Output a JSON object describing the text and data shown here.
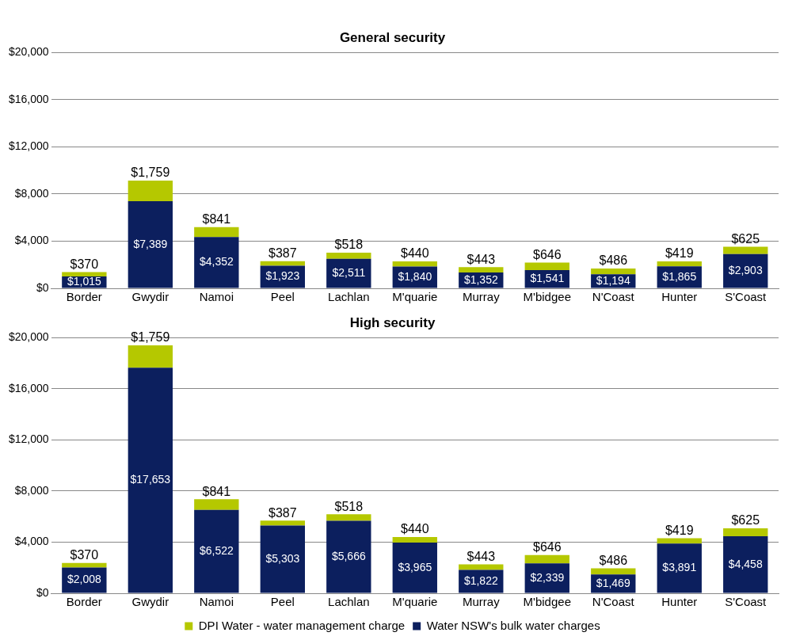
{
  "chart_data": [
    {
      "type": "bar",
      "title": "General security",
      "stacked": true,
      "categories": [
        "Border",
        "Gwydir",
        "Namoi",
        "Peel",
        "Lachlan",
        "M'quarie",
        "Murray",
        "M'bidgee",
        "N'Coast",
        "Hunter",
        "S'Coast"
      ],
      "series": [
        {
          "color": "#0c1f5e",
          "values": [
            1015,
            7389,
            4352,
            1923,
            2511,
            1840,
            1352,
            1541,
            1194,
            1865,
            2903
          ],
          "value_labels": [
            "$1,015",
            "$7,389",
            "$4,352",
            "$1,923",
            "$2,511",
            "$1,840",
            "$1,352",
            "$1,541",
            "$1,194",
            "$1,865",
            "$2,903"
          ]
        },
        {
          "color": "#b5c800",
          "values": [
            370,
            1759,
            841,
            387,
            518,
            440,
            443,
            646,
            486,
            419,
            625
          ],
          "value_labels": [
            "$370",
            "$1,759",
            "$841",
            "$387",
            "$518",
            "$440",
            "$443",
            "$646",
            "$486",
            "$419",
            "$625"
          ]
        }
      ],
      "ylim": [
        0,
        20000
      ],
      "yticks": [
        {
          "value": 0,
          "label": "$0"
        },
        {
          "value": 4000,
          "label": "$4,000"
        },
        {
          "value": 8000,
          "label": "$8,000"
        },
        {
          "value": 12000,
          "label": "$12,000"
        },
        {
          "value": 16000,
          "label": "$16,000"
        },
        {
          "value": 20000,
          "label": "$20,000"
        }
      ],
      "grid": "y",
      "legend": false
    },
    {
      "type": "bar",
      "title": "High security",
      "stacked": true,
      "categories": [
        "Border",
        "Gwydir",
        "Namoi",
        "Peel",
        "Lachlan",
        "M'quarie",
        "Murray",
        "M'bidgee",
        "N'Coast",
        "Hunter",
        "S'Coast"
      ],
      "series": [
        {
          "name": "Water NSW's bulk water charges",
          "color": "#0c1f5e",
          "values": [
            2008,
            17653,
            6522,
            5303,
            5666,
            3965,
            1822,
            2339,
            1469,
            3891,
            4458
          ],
          "value_labels": [
            "$2,008",
            "$17,653",
            "$6,522",
            "$5,303",
            "$5,666",
            "$3,965",
            "$1,822",
            "$2,339",
            "$1,469",
            "$3,891",
            "$4,458"
          ]
        },
        {
          "name": "DPI Water - water management charge",
          "color": "#b5c800",
          "values": [
            370,
            1759,
            841,
            387,
            518,
            440,
            443,
            646,
            486,
            419,
            625
          ],
          "value_labels": [
            "$370",
            "$1,759",
            "$841",
            "$387",
            "$518",
            "$440",
            "$443",
            "$646",
            "$486",
            "$419",
            "$625"
          ]
        }
      ],
      "ylim": [
        0,
        20000
      ],
      "yticks": [
        {
          "value": 0,
          "label": "$0"
        },
        {
          "value": 4000,
          "label": "$4,000"
        },
        {
          "value": 8000,
          "label": "$8,000"
        },
        {
          "value": 12000,
          "label": "$12,000"
        },
        {
          "value": 16000,
          "label": "$16,000"
        },
        {
          "value": 20000,
          "label": "$20,000"
        }
      ],
      "grid": "y",
      "legend": "bottom"
    }
  ]
}
